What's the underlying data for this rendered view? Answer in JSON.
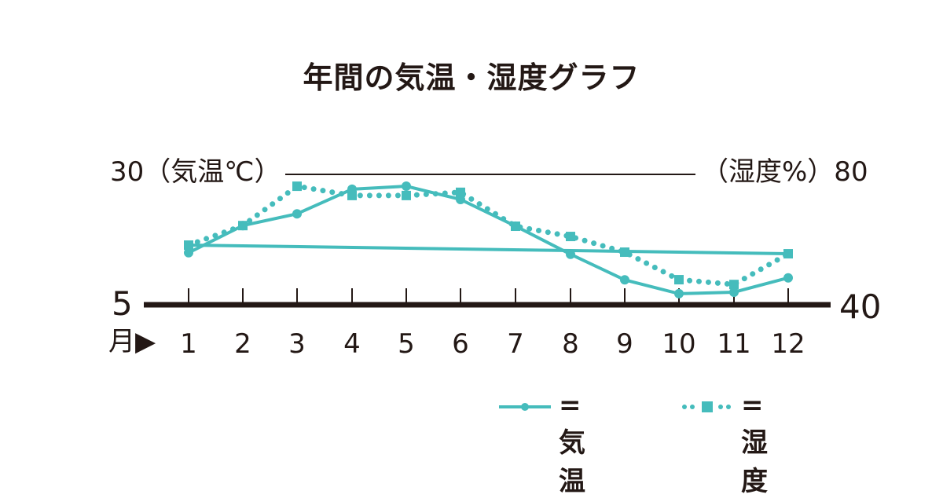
{
  "title": "年間の気温・湿度グラフ",
  "axes": {
    "left_top_label": "30（気温℃）",
    "right_top_label": "（湿度%）80",
    "left_bottom_label": "5",
    "right_bottom_label": "40",
    "x_prefix": "月▶"
  },
  "months": [
    "1",
    "2",
    "3",
    "4",
    "5",
    "6",
    "7",
    "8",
    "9",
    "10",
    "11",
    "12"
  ],
  "legend": {
    "temperature": "= 気温",
    "humidity": "= 湿度"
  },
  "colors": {
    "series": "#45bcbc",
    "axis": "#231815"
  },
  "chart_data": {
    "type": "line",
    "title": "年間の気温・湿度グラフ",
    "xlabel": "月",
    "categories": [
      "1",
      "2",
      "3",
      "4",
      "5",
      "6",
      "7",
      "8",
      "9",
      "10",
      "11",
      "12"
    ],
    "series": [
      {
        "name": "気温",
        "axis": "left",
        "unit": "℃",
        "style": "solid-circle",
        "values": [
          14.7,
          20.0,
          22.3,
          27.1,
          27.7,
          25.1,
          19.9,
          14.4,
          9.4,
          6.7,
          7.0,
          9.8
        ]
      },
      {
        "name": "湿度",
        "axis": "right",
        "unit": "%",
        "style": "dotted-square",
        "values": [
          57.9,
          64.0,
          76.3,
          73.4,
          73.4,
          74.4,
          63.8,
          60.6,
          55.7,
          47.1,
          45.6,
          55.2
        ]
      }
    ],
    "extra_line": {
      "description": "straight line from month 1 to month 12",
      "y_left_start": 16.2,
      "y_left_end": 14.5
    },
    "ylim_left": [
      5,
      30
    ],
    "ylim_right": [
      40,
      80
    ],
    "ylabel_left": "気温℃",
    "ylabel_right": "湿度%",
    "grid": false,
    "legend_position": "bottom-right"
  }
}
